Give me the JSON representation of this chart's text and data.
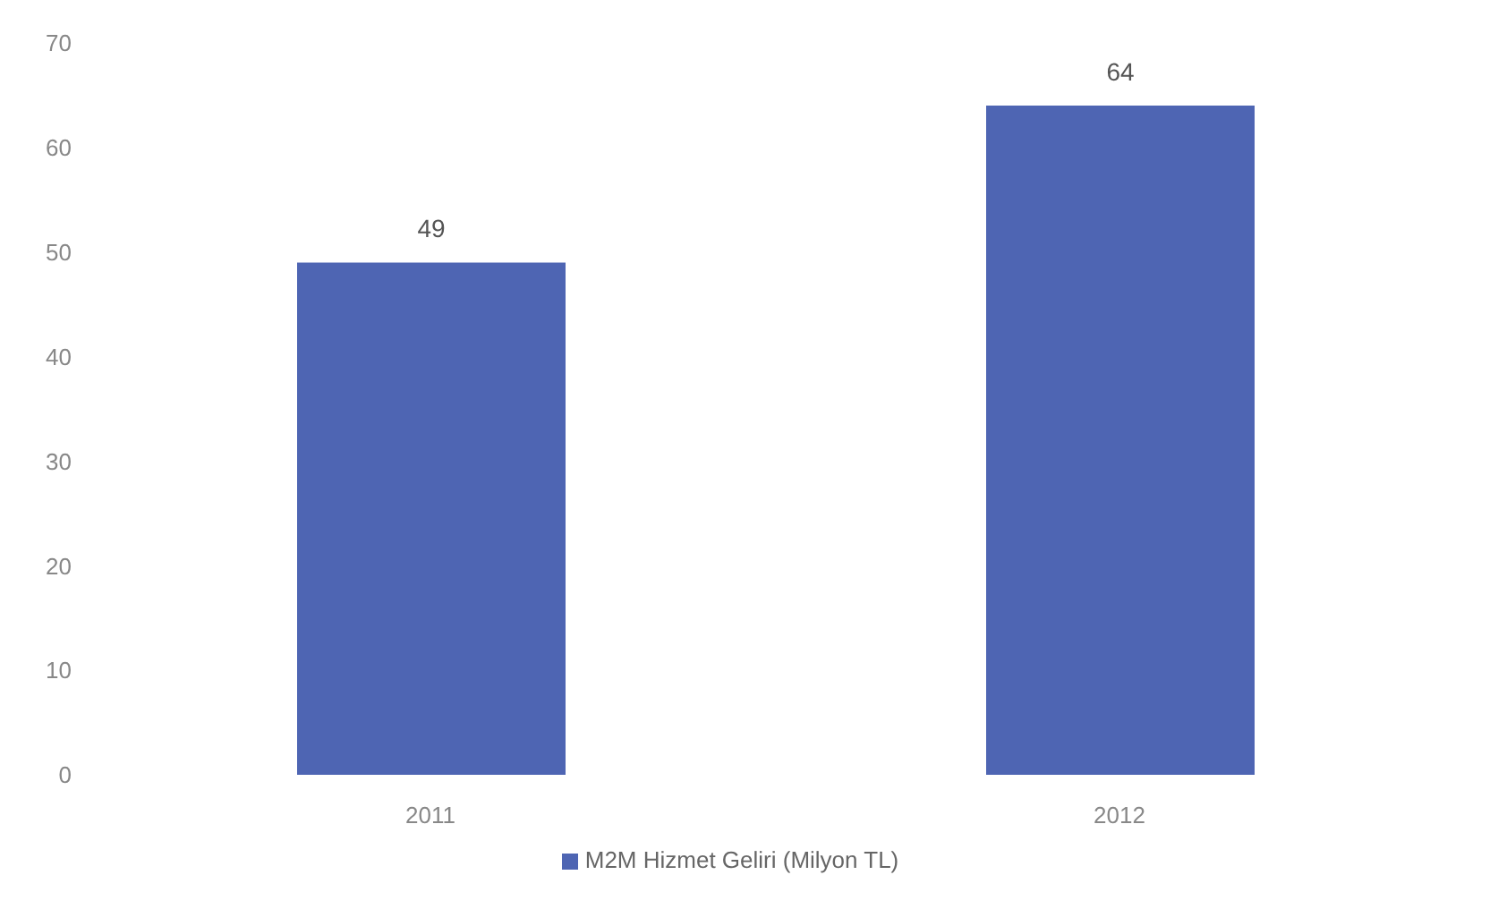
{
  "chart_data": {
    "type": "bar",
    "categories": [
      "2011",
      "2012"
    ],
    "series": [
      {
        "name": "M2M Hizmet Geliri (Milyon TL)",
        "color": "#4e65b3",
        "values": [
          49,
          64
        ]
      }
    ],
    "ylim": [
      0,
      70
    ],
    "yticks": [
      0,
      10,
      20,
      30,
      40,
      50,
      60,
      70
    ],
    "grid": false,
    "legend": "bottom",
    "data_labels": true
  }
}
